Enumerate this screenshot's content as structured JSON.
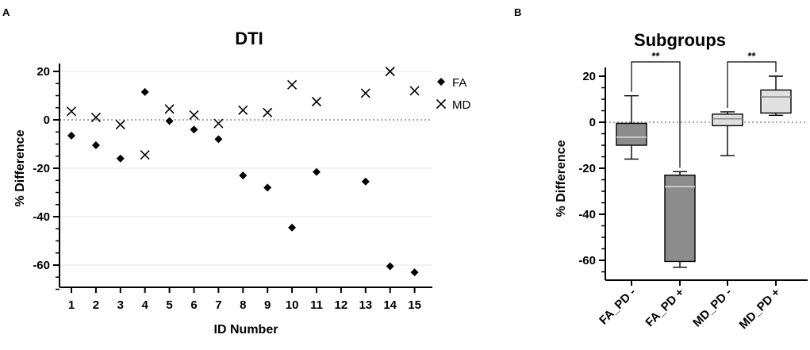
{
  "chart_data": [
    {
      "panel": "A",
      "type": "scatter",
      "title": "DTI",
      "xlabel": "ID Number",
      "ylabel": "% Difference",
      "ylim": [
        -70,
        20
      ],
      "yticks": [
        20,
        0,
        -20,
        -40,
        -60
      ],
      "categories": [
        "1",
        "2",
        "3",
        "4",
        "5",
        "6",
        "7",
        "8",
        "9",
        "10",
        "11",
        "12",
        "13",
        "14",
        "15"
      ],
      "series": [
        {
          "name": "FA",
          "marker": "diamond",
          "values": [
            -6.5,
            -10.5,
            -16,
            11.5,
            -0.5,
            -4,
            -8,
            -23,
            -28,
            -44.5,
            -21.5,
            null,
            -25.5,
            -60.5,
            -63
          ]
        },
        {
          "name": "MD",
          "marker": "x",
          "values": [
            3.5,
            1,
            -2,
            -14.5,
            4.5,
            2,
            -1.5,
            4,
            3,
            14.5,
            7.5,
            null,
            11,
            20,
            12
          ]
        }
      ],
      "reference_line": 0,
      "gridlines": true
    },
    {
      "panel": "B",
      "type": "box",
      "title": "Subgroups",
      "ylabel": "% Difference",
      "ylim": [
        -70,
        22
      ],
      "yticks": [
        20,
        0,
        -20,
        -40,
        -60
      ],
      "categories": [
        "FA_PD -",
        "FA_PD +",
        "MD_PD -",
        "MD_PD +"
      ],
      "boxes": [
        {
          "min": -16,
          "q1": -10,
          "median": -6.5,
          "q3": -0.5,
          "max": 11.5,
          "color": "#8c8c8c"
        },
        {
          "min": -63,
          "q1": -60.5,
          "median": -28,
          "q3": -23,
          "max": -21.5,
          "color": "#8c8c8c"
        },
        {
          "min": -14.5,
          "q1": -1.5,
          "median": 1.5,
          "q3": 3.5,
          "max": 4.5,
          "color": "#e0e0e0"
        },
        {
          "min": 3,
          "q1": 4,
          "median": 11,
          "q3": 14,
          "max": 20,
          "color": "#e0e0e0"
        }
      ],
      "significance": [
        {
          "from": 0,
          "to": 1,
          "label": "**"
        },
        {
          "from": 2,
          "to": 3,
          "label": "**"
        }
      ],
      "reference_line": 0
    }
  ]
}
